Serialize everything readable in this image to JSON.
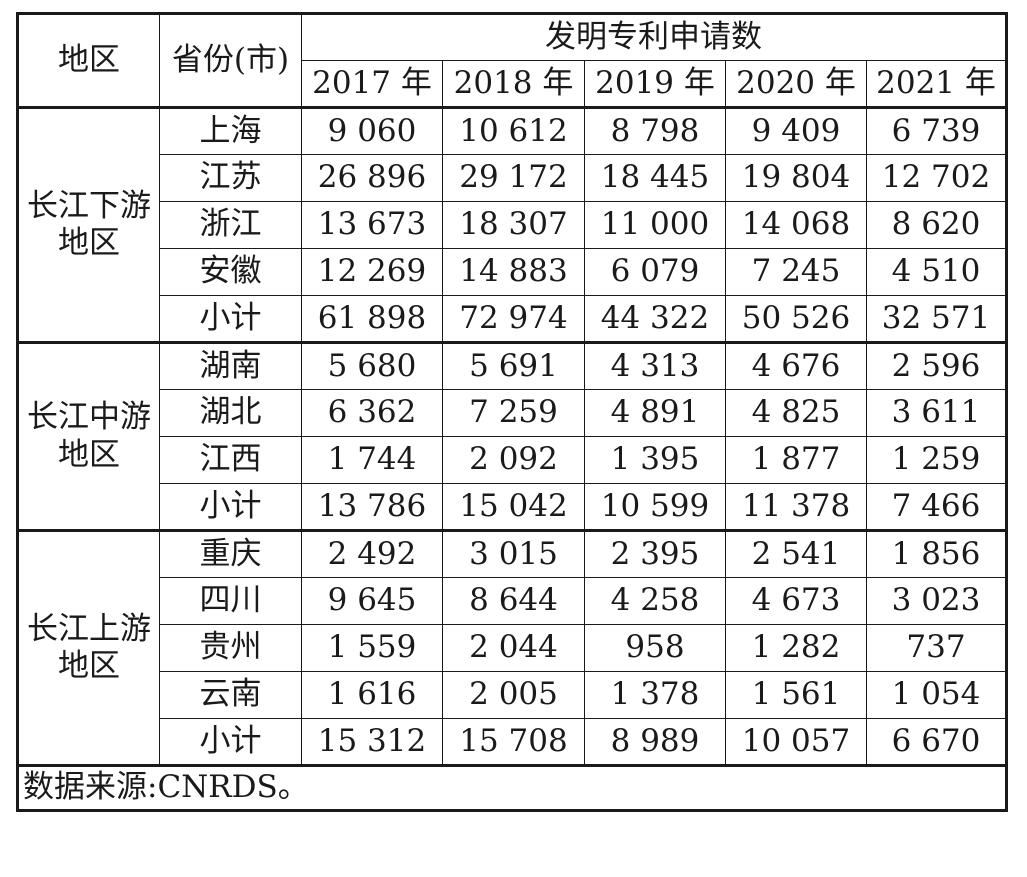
{
  "header": {
    "region": "地区",
    "province": "省份(市)",
    "group": "发明专利申请数",
    "years": [
      "2017 年",
      "2018 年",
      "2019 年",
      "2020 年",
      "2021 年"
    ]
  },
  "groups": [
    {
      "region_line1": "长江下游",
      "region_line2": "地区",
      "rows": [
        {
          "name": "上海",
          "values": [
            "9 060",
            "10 612",
            "8 798",
            "9 409",
            "6 739"
          ]
        },
        {
          "name": "江苏",
          "values": [
            "26 896",
            "29 172",
            "18 445",
            "19 804",
            "12 702"
          ]
        },
        {
          "name": "浙江",
          "values": [
            "13 673",
            "18 307",
            "11 000",
            "14 068",
            "8 620"
          ]
        },
        {
          "name": "安徽",
          "values": [
            "12 269",
            "14 883",
            "6 079",
            "7 245",
            "4 510"
          ]
        },
        {
          "name": "小计",
          "values": [
            "61 898",
            "72 974",
            "44 322",
            "50 526",
            "32 571"
          ]
        }
      ]
    },
    {
      "region_line1": "长江中游",
      "region_line2": "地区",
      "rows": [
        {
          "name": "湖南",
          "values": [
            "5 680",
            "5 691",
            "4 313",
            "4 676",
            "2 596"
          ]
        },
        {
          "name": "湖北",
          "values": [
            "6 362",
            "7 259",
            "4 891",
            "4 825",
            "3 611"
          ]
        },
        {
          "name": "江西",
          "values": [
            "1 744",
            "2 092",
            "1 395",
            "1 877",
            "1 259"
          ]
        },
        {
          "name": "小计",
          "values": [
            "13 786",
            "15 042",
            "10 599",
            "11 378",
            "7 466"
          ]
        }
      ]
    },
    {
      "region_line1": "长江上游",
      "region_line2": "地区",
      "rows": [
        {
          "name": "重庆",
          "values": [
            "2 492",
            "3 015",
            "2 395",
            "2 541",
            "1 856"
          ]
        },
        {
          "name": "四川",
          "values": [
            "9 645",
            "8 644",
            "4 258",
            "4 673",
            "3 023"
          ]
        },
        {
          "name": "贵州",
          "values": [
            "1 559",
            "2 044",
            "958",
            "1 282",
            "737"
          ]
        },
        {
          "name": "云南",
          "values": [
            "1 616",
            "2 005",
            "1 378",
            "1 561",
            "1 054"
          ]
        },
        {
          "name": "小计",
          "values": [
            "15 312",
            "15 708",
            "8 989",
            "10 057",
            "6 670"
          ]
        }
      ]
    }
  ],
  "source_note": "数据来源:CNRDS。"
}
